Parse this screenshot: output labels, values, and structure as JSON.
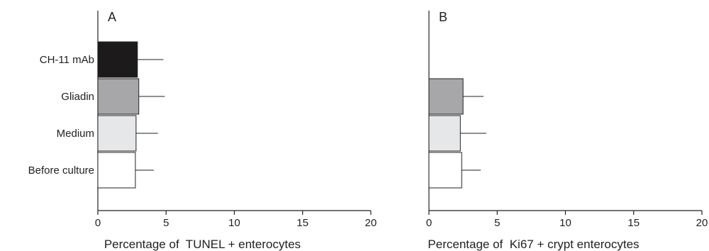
{
  "chart_data": [
    {
      "type": "bar",
      "orientation": "horizontal",
      "panel_label": "A",
      "categories": [
        "CH-11 mAb",
        "Gliadin",
        "Medium",
        "Before culture"
      ],
      "values": [
        2.9,
        3.0,
        2.8,
        2.75
      ],
      "errors": [
        1.9,
        1.9,
        1.6,
        1.35
      ],
      "bar_colors": [
        "#1c1a1a",
        "#a7a7a9",
        "#e6e7e8",
        "#ffffff"
      ],
      "xlabel": "Percentage of  TUNEL + enterocytes",
      "ylabel": "",
      "xlim": [
        0,
        20
      ],
      "xticks": [
        0,
        5,
        10,
        15,
        20
      ],
      "grid": false
    },
    {
      "type": "bar",
      "orientation": "horizontal",
      "panel_label": "B",
      "categories": [
        "CH-11 mAb",
        "Gliadin",
        "Medium",
        "Before culture"
      ],
      "values": [
        null,
        2.5,
        2.3,
        2.4
      ],
      "errors": [
        null,
        1.5,
        1.9,
        1.4
      ],
      "bar_colors": [
        "#1c1a1a",
        "#a7a7a9",
        "#e6e7e8",
        "#ffffff"
      ],
      "xlabel": "Percentage of  Ki67 + crypt enterocytes",
      "ylabel": "",
      "xlim": [
        0,
        20
      ],
      "xticks": [
        0,
        5,
        10,
        15,
        20
      ],
      "grid": false
    }
  ]
}
